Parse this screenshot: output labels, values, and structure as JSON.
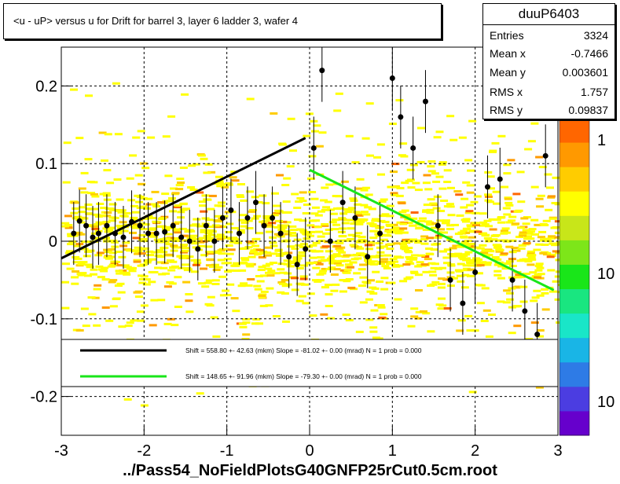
{
  "title": "<u - uP>       versus   u for Drift for barrel 3, layer 6 ladder 3, wafer 4",
  "footer": "../Pass54_NoFieldPlotsG40GNFP25rCut0.5cm.root",
  "stats": {
    "name": "duuP6403",
    "rows": [
      {
        "k": "Entries",
        "v": "3324"
      },
      {
        "k": "Mean x",
        "v": "-0.7466"
      },
      {
        "k": "Mean y",
        "v": "0.003601"
      },
      {
        "k": "RMS x",
        "v": "1.757"
      },
      {
        "k": "RMS y",
        "v": "0.09837"
      }
    ]
  },
  "legend": [
    {
      "text": "Shift =   558.80 +- 42.63 (mkm) Slope =   -81.02 +- 0.00 (mrad)  N = 1 prob = 0.000",
      "color": "#000000"
    },
    {
      "text": "Shift =   148.65 +- 91.96 (mkm) Slope =   -79.30 +- 0.00 (mrad)  N = 1 prob = 0.000",
      "color": "#19e619"
    }
  ],
  "colorbar": {
    "labels": [
      "1",
      "10",
      "10"
    ]
  },
  "chart_data": {
    "type": "scatter",
    "xlim": [
      -3,
      3
    ],
    "ylim": [
      -0.25,
      0.25
    ],
    "xticks": [
      "-3",
      "-2",
      "-1",
      "0",
      "1",
      "2",
      "3"
    ],
    "yticks": [
      "-0.2",
      "-0.1",
      "0",
      "0.1",
      "0.2"
    ],
    "grid": true,
    "profile_points": [
      {
        "x": -2.85,
        "y": 0.01
      },
      {
        "x": -2.78,
        "y": 0.026
      },
      {
        "x": -2.7,
        "y": 0.02
      },
      {
        "x": -2.62,
        "y": 0.005
      },
      {
        "x": -2.55,
        "y": 0.01
      },
      {
        "x": -2.45,
        "y": 0.02
      },
      {
        "x": -2.35,
        "y": 0.01
      },
      {
        "x": -2.25,
        "y": 0.005
      },
      {
        "x": -2.15,
        "y": 0.025
      },
      {
        "x": -2.05,
        "y": 0.02
      },
      {
        "x": -1.95,
        "y": 0.01
      },
      {
        "x": -1.85,
        "y": 0.01
      },
      {
        "x": -1.75,
        "y": 0.012
      },
      {
        "x": -1.65,
        "y": 0.02
      },
      {
        "x": -1.55,
        "y": 0.005
      },
      {
        "x": -1.45,
        "y": 0.0
      },
      {
        "x": -1.35,
        "y": -0.01
      },
      {
        "x": -1.25,
        "y": 0.02
      },
      {
        "x": -1.15,
        "y": 0.0
      },
      {
        "x": -1.05,
        "y": 0.03
      },
      {
        "x": -0.95,
        "y": 0.04
      },
      {
        "x": -0.85,
        "y": 0.01
      },
      {
        "x": -0.75,
        "y": 0.03
      },
      {
        "x": -0.65,
        "y": 0.05
      },
      {
        "x": -0.55,
        "y": 0.02
      },
      {
        "x": -0.45,
        "y": 0.03
      },
      {
        "x": -0.35,
        "y": 0.01
      },
      {
        "x": -0.25,
        "y": -0.02
      },
      {
        "x": -0.15,
        "y": -0.03
      },
      {
        "x": -0.05,
        "y": -0.01
      },
      {
        "x": 0.05,
        "y": 0.12
      },
      {
        "x": 0.15,
        "y": 0.22
      },
      {
        "x": 0.25,
        "y": 0.0
      },
      {
        "x": 0.4,
        "y": 0.05
      },
      {
        "x": 0.55,
        "y": 0.03
      },
      {
        "x": 0.7,
        "y": -0.02
      },
      {
        "x": 0.85,
        "y": 0.01
      },
      {
        "x": 1.0,
        "y": 0.21
      },
      {
        "x": 1.1,
        "y": 0.16
      },
      {
        "x": 1.25,
        "y": 0.12
      },
      {
        "x": 1.4,
        "y": 0.18
      },
      {
        "x": 1.55,
        "y": 0.02
      },
      {
        "x": 1.7,
        "y": -0.05
      },
      {
        "x": 1.85,
        "y": -0.08
      },
      {
        "x": 2.0,
        "y": -0.04
      },
      {
        "x": 2.15,
        "y": 0.07
      },
      {
        "x": 2.3,
        "y": 0.08
      },
      {
        "x": 2.45,
        "y": -0.05
      },
      {
        "x": 2.6,
        "y": -0.09
      },
      {
        "x": 2.75,
        "y": -0.12
      },
      {
        "x": 2.85,
        "y": 0.11
      }
    ],
    "fit_lines": [
      {
        "x": [
          -3.0,
          -0.05
        ],
        "y": [
          -0.022,
          0.133
        ]
      },
      {
        "x": [
          0.0,
          2.95
        ],
        "y": [
          0.092,
          -0.063
        ]
      }
    ]
  }
}
